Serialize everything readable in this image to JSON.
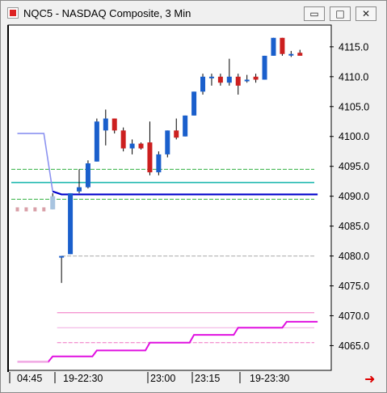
{
  "window": {
    "title": "NQC5 - NASDAQ Composite, 3 Min",
    "minimize_glyph": "▭",
    "maximize_glyph": "□",
    "close_glyph": "✕",
    "scroll_arrow_glyph": "➜"
  },
  "colors": {
    "up": "#1a5fcc",
    "down": "#cc1f1f",
    "line_blue": "#0000cc",
    "line_lavender": "#8c93f0",
    "teal": "#1fb8b0",
    "green_dashed": "#30b040",
    "magenta": "#e010e0",
    "pink_dashed": "#f070c0",
    "pink_light": "#f0a8e0",
    "gray_dashed": "#a9a9a9",
    "pre_market": "#d9a0a8",
    "pre_market_up": "#a8c4e0",
    "arrow": "#dd0000"
  },
  "chart_data": {
    "type": "candlestick",
    "ylim": [
      4061,
      4118.5
    ],
    "y_ticks": [
      "4115.0",
      "4110.0",
      "4105.0",
      "4100.0",
      "4095.0",
      "4090.0",
      "4085.0",
      "4080.0",
      "4075.0",
      "4070.0",
      "4065.0"
    ],
    "x_labels": [
      "04:45",
      "19-22:30",
      "23:00",
      "23:15",
      "19-23:30"
    ],
    "pre_market": [
      {
        "bar": 0,
        "value": 4087.8
      },
      {
        "bar": 1,
        "value": 4087.8
      },
      {
        "bar": 2,
        "value": 4087.8
      },
      {
        "bar": 3,
        "value": 4087.8
      }
    ],
    "candles": [
      {
        "bar": 4,
        "o": 4087.8,
        "h": 4090.5,
        "l": 4087.8,
        "c": 4090.0
      },
      {
        "bar": 5,
        "o": 4080.0,
        "h": 4080.0,
        "l": 4075.5,
        "c": 4080.0
      },
      {
        "bar": 6,
        "o": 4080.3,
        "h": 4090.5,
        "l": 4080.3,
        "c": 4090.5
      },
      {
        "bar": 7,
        "o": 4090.8,
        "h": 4094.5,
        "l": 4090.5,
        "c": 4091.5
      },
      {
        "bar": 8,
        "o": 4091.5,
        "h": 4096.0,
        "l": 4091.3,
        "c": 4095.5
      },
      {
        "bar": 9,
        "o": 4095.8,
        "h": 4103.0,
        "l": 4095.8,
        "c": 4102.5
      },
      {
        "bar": 10,
        "o": 4101.0,
        "h": 4104.5,
        "l": 4098.5,
        "c": 4103.0
      },
      {
        "bar": 11,
        "o": 4103.0,
        "h": 4103.0,
        "l": 4100.5,
        "c": 4101.0
      },
      {
        "bar": 12,
        "o": 4101.0,
        "h": 4101.5,
        "l": 4097.5,
        "c": 4098.0
      },
      {
        "bar": 13,
        "o": 4098.0,
        "h": 4099.5,
        "l": 4097.0,
        "c": 4098.8
      },
      {
        "bar": 14,
        "o": 4098.8,
        "h": 4099.0,
        "l": 4097.8,
        "c": 4098.0
      },
      {
        "bar": 15,
        "o": 4099.0,
        "h": 4102.5,
        "l": 4093.5,
        "c": 4094.0
      },
      {
        "bar": 16,
        "o": 4094.0,
        "h": 4097.5,
        "l": 4093.5,
        "c": 4097.0
      },
      {
        "bar": 17,
        "o": 4097.0,
        "h": 4101.0,
        "l": 4096.5,
        "c": 4101.0
      },
      {
        "bar": 18,
        "o": 4101.0,
        "h": 4103.0,
        "l": 4099.5,
        "c": 4099.8
      },
      {
        "bar": 19,
        "o": 4100.0,
        "h": 4103.5,
        "l": 4100.0,
        "c": 4103.5
      },
      {
        "bar": 20,
        "o": 4103.5,
        "h": 4107.5,
        "l": 4103.5,
        "c": 4107.5
      },
      {
        "bar": 21,
        "o": 4107.5,
        "h": 4110.5,
        "l": 4107.0,
        "c": 4110.0
      },
      {
        "bar": 22,
        "o": 4110.0,
        "h": 4110.5,
        "l": 4108.5,
        "c": 4110.0
      },
      {
        "bar": 23,
        "o": 4110.0,
        "h": 4110.5,
        "l": 4108.5,
        "c": 4109.0
      },
      {
        "bar": 24,
        "o": 4109.0,
        "h": 4113.0,
        "l": 4108.5,
        "c": 4110.0
      },
      {
        "bar": 25,
        "o": 4110.0,
        "h": 4110.5,
        "l": 4107.0,
        "c": 4108.5
      },
      {
        "bar": 26,
        "o": 4109.5,
        "h": 4110.3,
        "l": 4109.0,
        "c": 4109.5
      },
      {
        "bar": 27,
        "o": 4110.0,
        "h": 4110.5,
        "l": 4109.0,
        "c": 4109.5
      },
      {
        "bar": 28,
        "o": 4109.5,
        "h": 4113.5,
        "l": 4109.5,
        "c": 4113.5
      },
      {
        "bar": 29,
        "o": 4113.5,
        "h": 4116.5,
        "l": 4113.5,
        "c": 4116.5
      },
      {
        "bar": 30,
        "o": 4116.5,
        "h": 4116.5,
        "l": 4113.5,
        "c": 4113.8
      },
      {
        "bar": 31,
        "o": 4113.8,
        "h": 4114.3,
        "l": 4113.3,
        "c": 4113.8
      },
      {
        "bar": 32,
        "o": 4114.0,
        "h": 4114.5,
        "l": 4113.5,
        "c": 4113.5
      }
    ],
    "horizontal_lines": [
      {
        "value": 4094.5,
        "color": "green_dashed",
        "style": "dashed"
      },
      {
        "value": 4092.3,
        "color": "teal",
        "style": "solid"
      },
      {
        "value": 4089.5,
        "color": "green_dashed",
        "style": "dashed"
      },
      {
        "value": 4080.0,
        "color": "gray_dashed",
        "style": "dashed"
      },
      {
        "value": 4070.5,
        "color": "pink_dashed",
        "style": "solid"
      },
      {
        "value": 4068.0,
        "color": "pink_light",
        "style": "solid"
      },
      {
        "value": 4065.5,
        "color": "pink_dashed",
        "style": "dashed"
      }
    ],
    "blue_line": [
      {
        "bar": 0,
        "value": 4100.5
      },
      {
        "bar": 3,
        "value": 4100.5
      },
      {
        "bar": 4,
        "value": 4090.8
      },
      {
        "bar": 5,
        "value": 4090.3
      },
      {
        "bar": 34,
        "value": 4090.3
      }
    ],
    "magenta_step": [
      {
        "bar": 0,
        "value": 4062.3
      },
      {
        "bar": 3.5,
        "value": 4062.3
      },
      {
        "bar": 4,
        "value": 4063.2
      },
      {
        "bar": 8.5,
        "value": 4063.2
      },
      {
        "bar": 9,
        "value": 4064.2
      },
      {
        "bar": 14.5,
        "value": 4064.2
      },
      {
        "bar": 15,
        "value": 4065.5
      },
      {
        "bar": 19.5,
        "value": 4065.5
      },
      {
        "bar": 20,
        "value": 4066.8
      },
      {
        "bar": 24.5,
        "value": 4066.8
      },
      {
        "bar": 25,
        "value": 4068.0
      },
      {
        "bar": 30,
        "value": 4068.0
      },
      {
        "bar": 30.5,
        "value": 4069.0
      },
      {
        "bar": 34,
        "value": 4069.0
      }
    ]
  }
}
